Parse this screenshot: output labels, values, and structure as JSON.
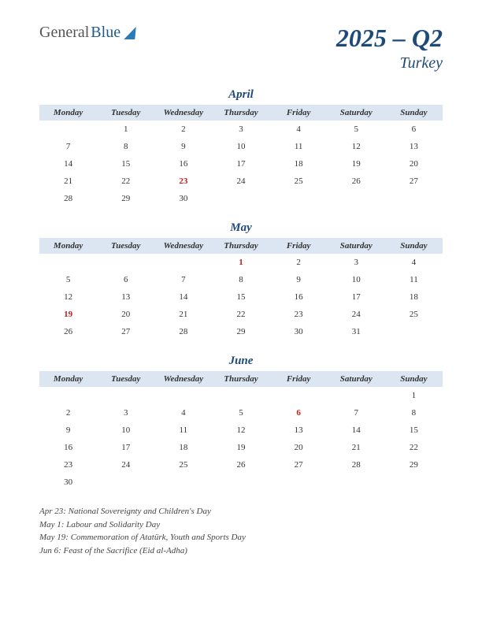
{
  "logo": {
    "part1": "General",
    "part2": "Blue"
  },
  "title": {
    "main": "2025 – Q2",
    "sub": "Turkey"
  },
  "colors": {
    "header_bg": "#dce6f2",
    "accent": "#1e4a7a",
    "holiday": "#c02020",
    "text": "#333333"
  },
  "weekdays": [
    "Monday",
    "Tuesday",
    "Wednesday",
    "Thursday",
    "Friday",
    "Saturday",
    "Sunday"
  ],
  "months": [
    {
      "name": "April",
      "weeks": [
        [
          "",
          "1",
          "2",
          "3",
          "4",
          "5",
          "6"
        ],
        [
          "7",
          "8",
          "9",
          "10",
          "11",
          "12",
          "13"
        ],
        [
          "14",
          "15",
          "16",
          "17",
          "18",
          "19",
          "20"
        ],
        [
          "21",
          "22",
          "23",
          "24",
          "25",
          "26",
          "27"
        ],
        [
          "28",
          "29",
          "30",
          "",
          "",
          "",
          ""
        ]
      ],
      "holidays_cells": [
        [
          3,
          2
        ]
      ]
    },
    {
      "name": "May",
      "weeks": [
        [
          "",
          "",
          "",
          "1",
          "2",
          "3",
          "4"
        ],
        [
          "5",
          "6",
          "7",
          "8",
          "9",
          "10",
          "11"
        ],
        [
          "12",
          "13",
          "14",
          "15",
          "16",
          "17",
          "18"
        ],
        [
          "19",
          "20",
          "21",
          "22",
          "23",
          "24",
          "25"
        ],
        [
          "26",
          "27",
          "28",
          "29",
          "30",
          "31",
          ""
        ]
      ],
      "holidays_cells": [
        [
          0,
          3
        ],
        [
          3,
          0
        ]
      ]
    },
    {
      "name": "June",
      "weeks": [
        [
          "",
          "",
          "",
          "",
          "",
          "",
          "1"
        ],
        [
          "2",
          "3",
          "4",
          "5",
          "6",
          "7",
          "8"
        ],
        [
          "9",
          "10",
          "11",
          "12",
          "13",
          "14",
          "15"
        ],
        [
          "16",
          "17",
          "18",
          "19",
          "20",
          "21",
          "22"
        ],
        [
          "23",
          "24",
          "25",
          "26",
          "27",
          "28",
          "29"
        ],
        [
          "30",
          "",
          "",
          "",
          "",
          "",
          ""
        ]
      ],
      "holidays_cells": [
        [
          1,
          4
        ]
      ]
    }
  ],
  "holiday_notes": [
    "Apr 23: National Sovereignty and Children's Day",
    "May 1: Labour and Solidarity Day",
    "May 19: Commemoration of Atatürk, Youth and Sports Day",
    "Jun 6: Feast of the Sacrifice (Eid al-Adha)"
  ]
}
